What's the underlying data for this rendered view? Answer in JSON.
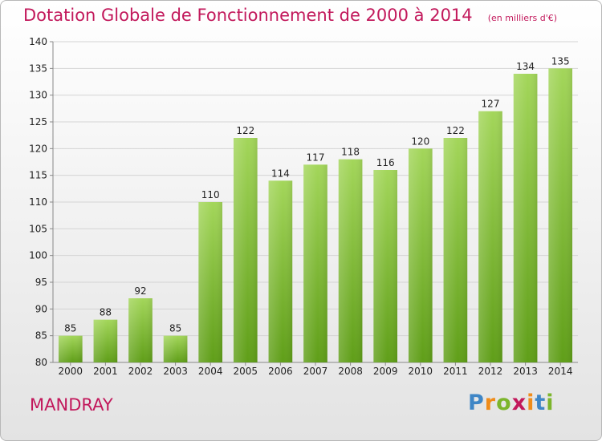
{
  "chart_data": {
    "type": "bar",
    "title": "Dotation Globale de Fonctionnement de 2000 à 2014",
    "subtitle": "(en milliers d'€)",
    "categories": [
      "2000",
      "2001",
      "2002",
      "2003",
      "2004",
      "2005",
      "2006",
      "2007",
      "2008",
      "2009",
      "2010",
      "2011",
      "2012",
      "2013",
      "2014"
    ],
    "values": [
      85,
      88,
      92,
      85,
      110,
      122,
      114,
      117,
      118,
      116,
      120,
      122,
      127,
      134,
      135
    ],
    "xlabel": "",
    "ylabel": "",
    "ylim": [
      80,
      140
    ],
    "yticks": [
      80,
      85,
      90,
      95,
      100,
      105,
      110,
      115,
      120,
      125,
      130,
      135,
      140
    ],
    "grid": true,
    "bar_color_top": "#a3d65a",
    "bar_color_bottom": "#5f9e18"
  },
  "footer": {
    "commune": "MANDRAY"
  },
  "brand": {
    "letters": [
      {
        "ch": "P",
        "color": "#3f86c6"
      },
      {
        "ch": "r",
        "color": "#f08c1a"
      },
      {
        "ch": "o",
        "color": "#7cb52c"
      },
      {
        "ch": "x",
        "color": "#c2185b"
      },
      {
        "ch": "i",
        "color": "#f08c1a"
      },
      {
        "ch": "t",
        "color": "#3f86c6"
      },
      {
        "ch": "i",
        "color": "#7cb52c"
      }
    ]
  }
}
